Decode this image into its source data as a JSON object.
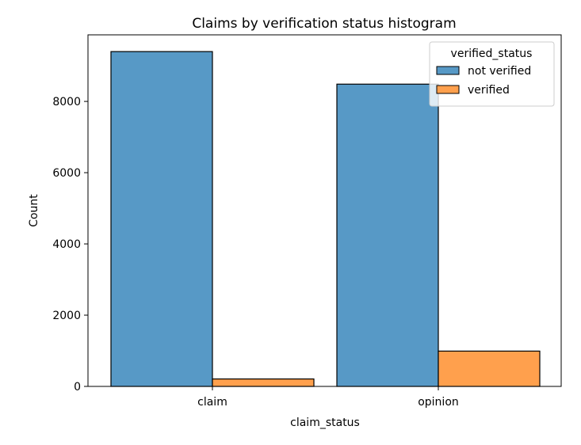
{
  "chart_data": {
    "type": "bar",
    "title": "Claims by verification status histogram",
    "xlabel": "claim_status",
    "ylabel": "Count",
    "categories": [
      "claim",
      "opinion"
    ],
    "series": [
      {
        "name": "not verified",
        "values": [
          9399,
          8485
        ],
        "color": "#5799c6"
      },
      {
        "name": "verified",
        "values": [
          209,
          991
        ],
        "color": "#ffa04d"
      }
    ],
    "ylim": [
      0,
      9869
    ],
    "yticks": [
      0,
      2000,
      4000,
      6000,
      8000
    ],
    "ytick_labels": [
      "0",
      "2000",
      "4000",
      "6000",
      "8000"
    ],
    "legend": {
      "title": "verified_status",
      "placement": "top-right"
    },
    "grid": false
  }
}
